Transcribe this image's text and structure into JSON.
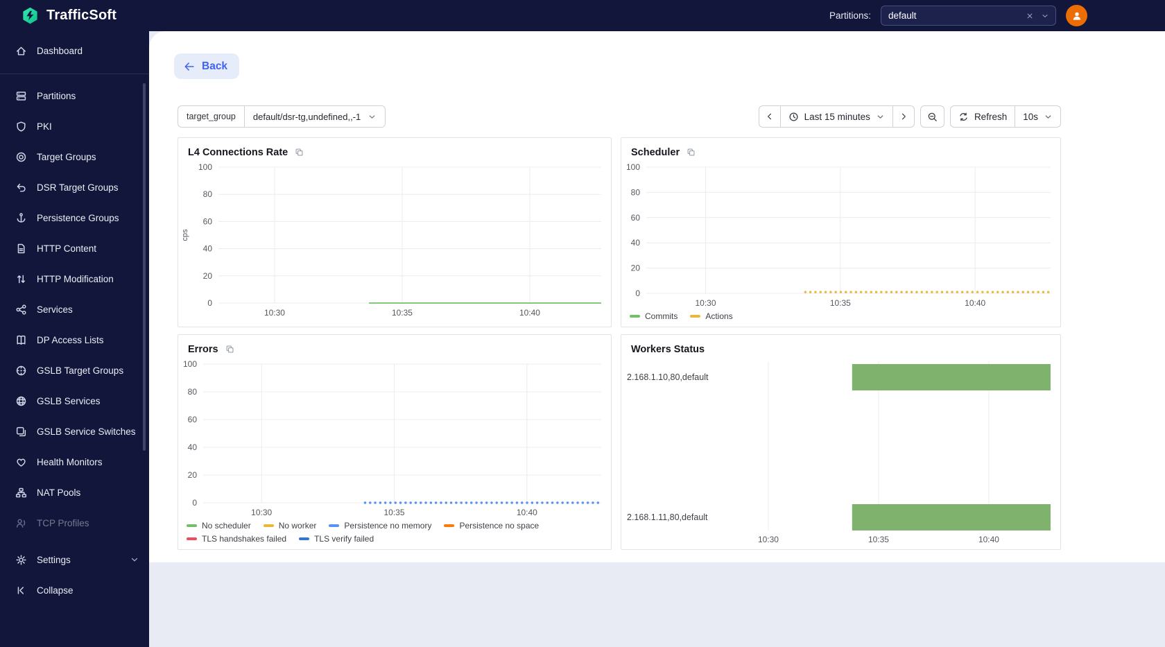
{
  "topbar": {
    "logo_text": "TrafficSoft",
    "partitions_label": "Partitions:",
    "partitions_value": "default",
    "brand_color": "#1ddfa3",
    "avatar_color": "#ed6d05"
  },
  "sidebar": {
    "dashboard": {
      "label": "Dashboard",
      "icon": "home-icon"
    },
    "items": [
      {
        "label": "Partitions",
        "icon": "server-icon"
      },
      {
        "label": "PKI",
        "icon": "shield-icon"
      },
      {
        "label": "Target Groups",
        "icon": "target-icon"
      },
      {
        "label": "DSR Target Groups",
        "icon": "undo-arrow-icon"
      },
      {
        "label": "Persistence Groups",
        "icon": "anchor-icon"
      },
      {
        "label": "HTTP Content",
        "icon": "document-icon"
      },
      {
        "label": "HTTP Modification",
        "icon": "arrows-up-down-icon"
      },
      {
        "label": "Services",
        "icon": "share-nodes-icon"
      },
      {
        "label": "DP Access Lists",
        "icon": "book-icon"
      },
      {
        "label": "GSLB Target Groups",
        "icon": "globe-target-icon"
      },
      {
        "label": "GSLB Services",
        "icon": "globe-icon"
      },
      {
        "label": "GSLB Service Switches",
        "icon": "layers-icon"
      },
      {
        "label": "Health Monitors",
        "icon": "heart-icon"
      },
      {
        "label": "NAT Pools",
        "icon": "network-icon"
      },
      {
        "label": "TCP Profiles",
        "icon": "person-signal-icon",
        "muted": true
      }
    ],
    "footer": [
      {
        "label": "Settings",
        "icon": "gear-icon",
        "expandable": true
      },
      {
        "label": "Collapse",
        "icon": "collapse-icon"
      }
    ]
  },
  "content": {
    "back_label": "Back",
    "filter": {
      "label": "target_group",
      "value": "default/dsr-tg,undefined,,-1"
    },
    "time_controls": {
      "range_label": "Last 15 minutes",
      "refresh_label": "Refresh",
      "interval_label": "10s"
    },
    "accent_color": "#4263eb"
  },
  "chart_data": [
    {
      "id": "l4-connections-rate",
      "type": "line",
      "title": "L4 Connections Rate",
      "copy_icon": true,
      "ylabel": "cps",
      "ylim": [
        0,
        100
      ],
      "yticks": [
        0,
        20,
        40,
        60,
        80,
        100
      ],
      "xlim": [
        627.8,
        642.8
      ],
      "xticks": [
        {
          "v": 630,
          "label": "10:30"
        },
        {
          "v": 635,
          "label": "10:35"
        },
        {
          "v": 640,
          "label": "10:40"
        }
      ],
      "series": [
        {
          "color": "#73bf69",
          "style": "solid",
          "points": [
            [
              633.7,
              0
            ],
            [
              642.8,
              0
            ]
          ]
        }
      ],
      "legend": []
    },
    {
      "id": "scheduler",
      "type": "line",
      "title": "Scheduler",
      "copy_icon": true,
      "ylabel": "",
      "ylim": [
        0,
        100
      ],
      "yticks": [
        0,
        20,
        40,
        60,
        80,
        100
      ],
      "xlim": [
        627.8,
        642.8
      ],
      "xticks": [
        {
          "v": 630,
          "label": "10:30"
        },
        {
          "v": 635,
          "label": "10:35"
        },
        {
          "v": 640,
          "label": "10:40"
        }
      ],
      "series": [
        {
          "name": "Commits",
          "color": "#73bf69",
          "style": "dotted",
          "points": []
        },
        {
          "name": "Actions",
          "color": "#eab839",
          "style": "dotted",
          "points": [
            [
              633.7,
              1
            ],
            [
              642.8,
              1
            ]
          ]
        }
      ],
      "legend": [
        {
          "label": "Commits",
          "color": "#73bf69"
        },
        {
          "label": "Actions",
          "color": "#eab839"
        }
      ]
    },
    {
      "id": "errors",
      "type": "line",
      "title": "Errors",
      "copy_icon": true,
      "ylabel": "",
      "ylim": [
        0,
        100
      ],
      "yticks": [
        0,
        20,
        40,
        60,
        80,
        100
      ],
      "xlim": [
        627.8,
        642.8
      ],
      "xticks": [
        {
          "v": 630,
          "label": "10:30"
        },
        {
          "v": 635,
          "label": "10:35"
        },
        {
          "v": 640,
          "label": "10:40"
        }
      ],
      "series": [
        {
          "name": "Persistence no memory",
          "color": "#5794f2",
          "style": "dotted",
          "points": [
            [
              633.9,
              0
            ],
            [
              642.8,
              0
            ]
          ]
        }
      ],
      "legend": [
        {
          "label": "No scheduler",
          "color": "#73bf69"
        },
        {
          "label": "No worker",
          "color": "#eab839"
        },
        {
          "label": "Persistence no memory",
          "color": "#5794f2"
        },
        {
          "label": "Persistence no space",
          "color": "#ff780a"
        },
        {
          "label": "TLS handshakes failed",
          "color": "#f2495c"
        },
        {
          "label": "TLS verify failed",
          "color": "#3274d9"
        }
      ]
    },
    {
      "id": "workers-status",
      "type": "timeline",
      "title": "Workers Status",
      "copy_icon": false,
      "xlim": [
        627.8,
        642.8
      ],
      "xticks": [
        {
          "v": 630,
          "label": "10:30"
        },
        {
          "v": 635,
          "label": "10:35"
        },
        {
          "v": 640,
          "label": "10:40"
        }
      ],
      "rows": [
        {
          "label": "2.168.1.10,80,default",
          "bars": [
            {
              "start": 633.8,
              "end": 642.9,
              "color": "#7eb26d"
            }
          ]
        },
        {
          "label": "2.168.1.11,80,default",
          "bars": [
            {
              "start": 633.8,
              "end": 642.9,
              "color": "#7eb26d"
            }
          ]
        }
      ]
    }
  ]
}
